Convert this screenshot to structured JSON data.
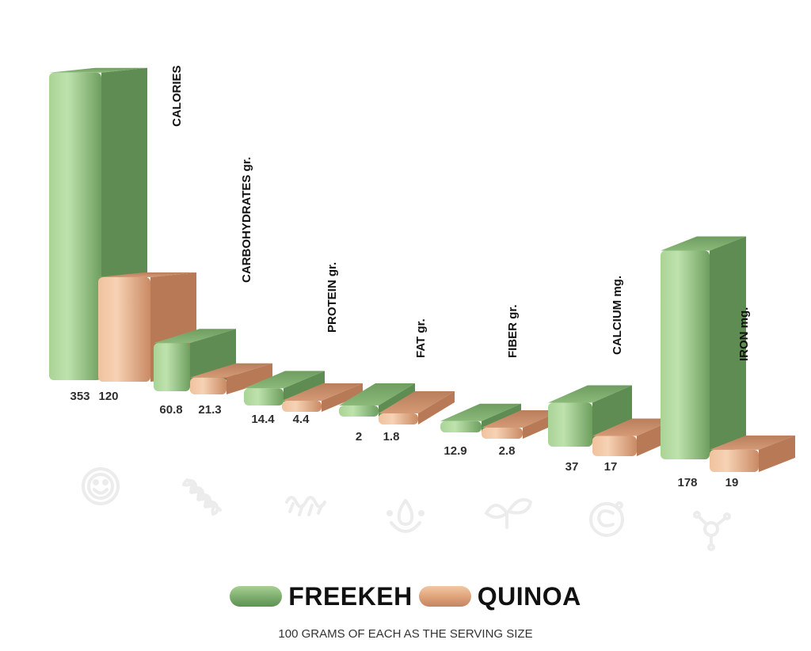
{
  "chart_data": {
    "type": "bar",
    "categories": [
      "CALORIES",
      "CARBOHYDRATES gr.",
      "PROTEIN gr.",
      "FAT gr.",
      "FIBER gr.",
      "CALCIUM mg.",
      "IRON mg."
    ],
    "series": [
      {
        "name": "FREEKEH",
        "values": [
          353,
          60.8,
          14.4,
          2,
          12.9,
          37,
          178
        ],
        "labels": [
          "353",
          "60.8",
          "14.4",
          "2",
          "12.9",
          "37",
          "178"
        ]
      },
      {
        "name": "QUINOA",
        "values": [
          120,
          21.3,
          4.4,
          1.8,
          2.8,
          17,
          19
        ],
        "labels": [
          "120",
          "21.3",
          "4.4",
          "1.8",
          "2.8",
          "17",
          "19"
        ]
      }
    ],
    "colors": {
      "FREEKEH": "#8fbf7f",
      "QUINOA": "#e0a47c"
    },
    "icons": [
      "smiley-face-icon",
      "wheat-icon",
      "protein-chain-icon",
      "oil-drop-icon",
      "leaves-icon",
      "calcium-icon",
      "iron-molecule-icon"
    ],
    "grid": false,
    "legend_position": "bottom"
  },
  "legend": {
    "freekeh": "FREEKEH",
    "quinoa": "QUINOA"
  },
  "footnote": "100 GRAMS OF EACH AS THE SERVING SIZE"
}
